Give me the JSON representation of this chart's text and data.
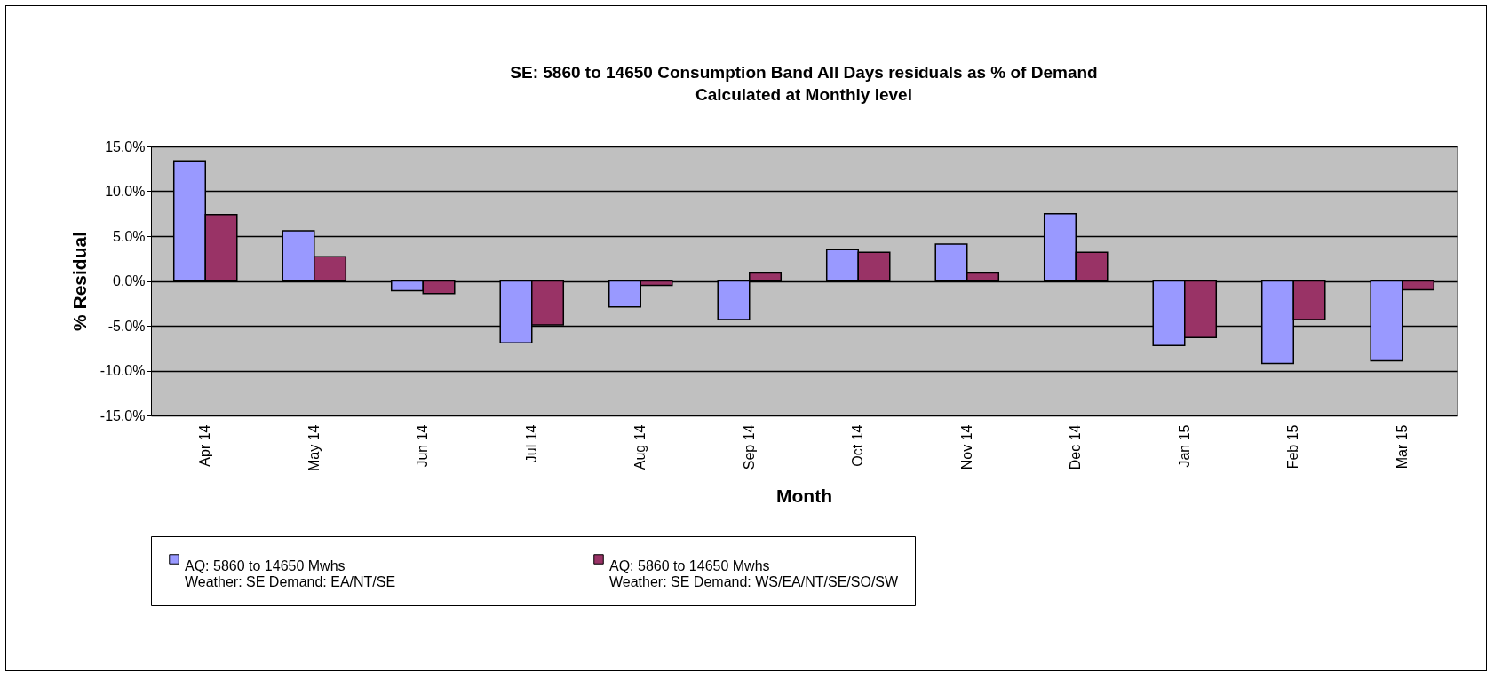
{
  "chart_data": {
    "type": "bar",
    "title": "SE: 5860 to 14650 Consumption Band All Days residuals as % of Demand",
    "subtitle": "Calculated at Monthly level",
    "xlabel": "Month",
    "ylabel": "% Residual",
    "categories": [
      "Apr 14",
      "May 14",
      "Jun 14",
      "Jul 14",
      "Aug 14",
      "Sep 14",
      "Oct 14",
      "Nov 14",
      "Dec 14",
      "Jan 15",
      "Feb 15",
      "Mar 15"
    ],
    "series": [
      {
        "name": "AQ: 5860 to 14650 Mwhs\nWeather: SE Demand: EA/NT/SE",
        "color": "#9999ff",
        "values": [
          13.4,
          5.6,
          -1.1,
          -6.9,
          -2.9,
          -4.3,
          3.5,
          4.1,
          7.5,
          -7.2,
          -9.2,
          -8.9
        ]
      },
      {
        "name": "AQ: 5860 to 14650 Mwhs\nWeather: SE Demand: WS/EA/NT/SE/SO/SW",
        "color": "#993366",
        "values": [
          7.4,
          2.7,
          -1.4,
          -4.9,
          -0.5,
          0.9,
          3.2,
          0.9,
          3.2,
          -6.3,
          -4.3,
          -1.0
        ]
      }
    ],
    "ylim": [
      -15,
      15
    ],
    "yticks": [
      {
        "value": -15,
        "label": "-15.0%"
      },
      {
        "value": -10,
        "label": "-10.0%"
      },
      {
        "value": -5,
        "label": "-5.0%"
      },
      {
        "value": 0,
        "label": "0.0%"
      },
      {
        "value": 5,
        "label": "5.0%"
      },
      {
        "value": 10,
        "label": "10.0%"
      },
      {
        "value": 15,
        "label": "15.0%"
      }
    ],
    "grid": "y",
    "legend": "bottom"
  }
}
